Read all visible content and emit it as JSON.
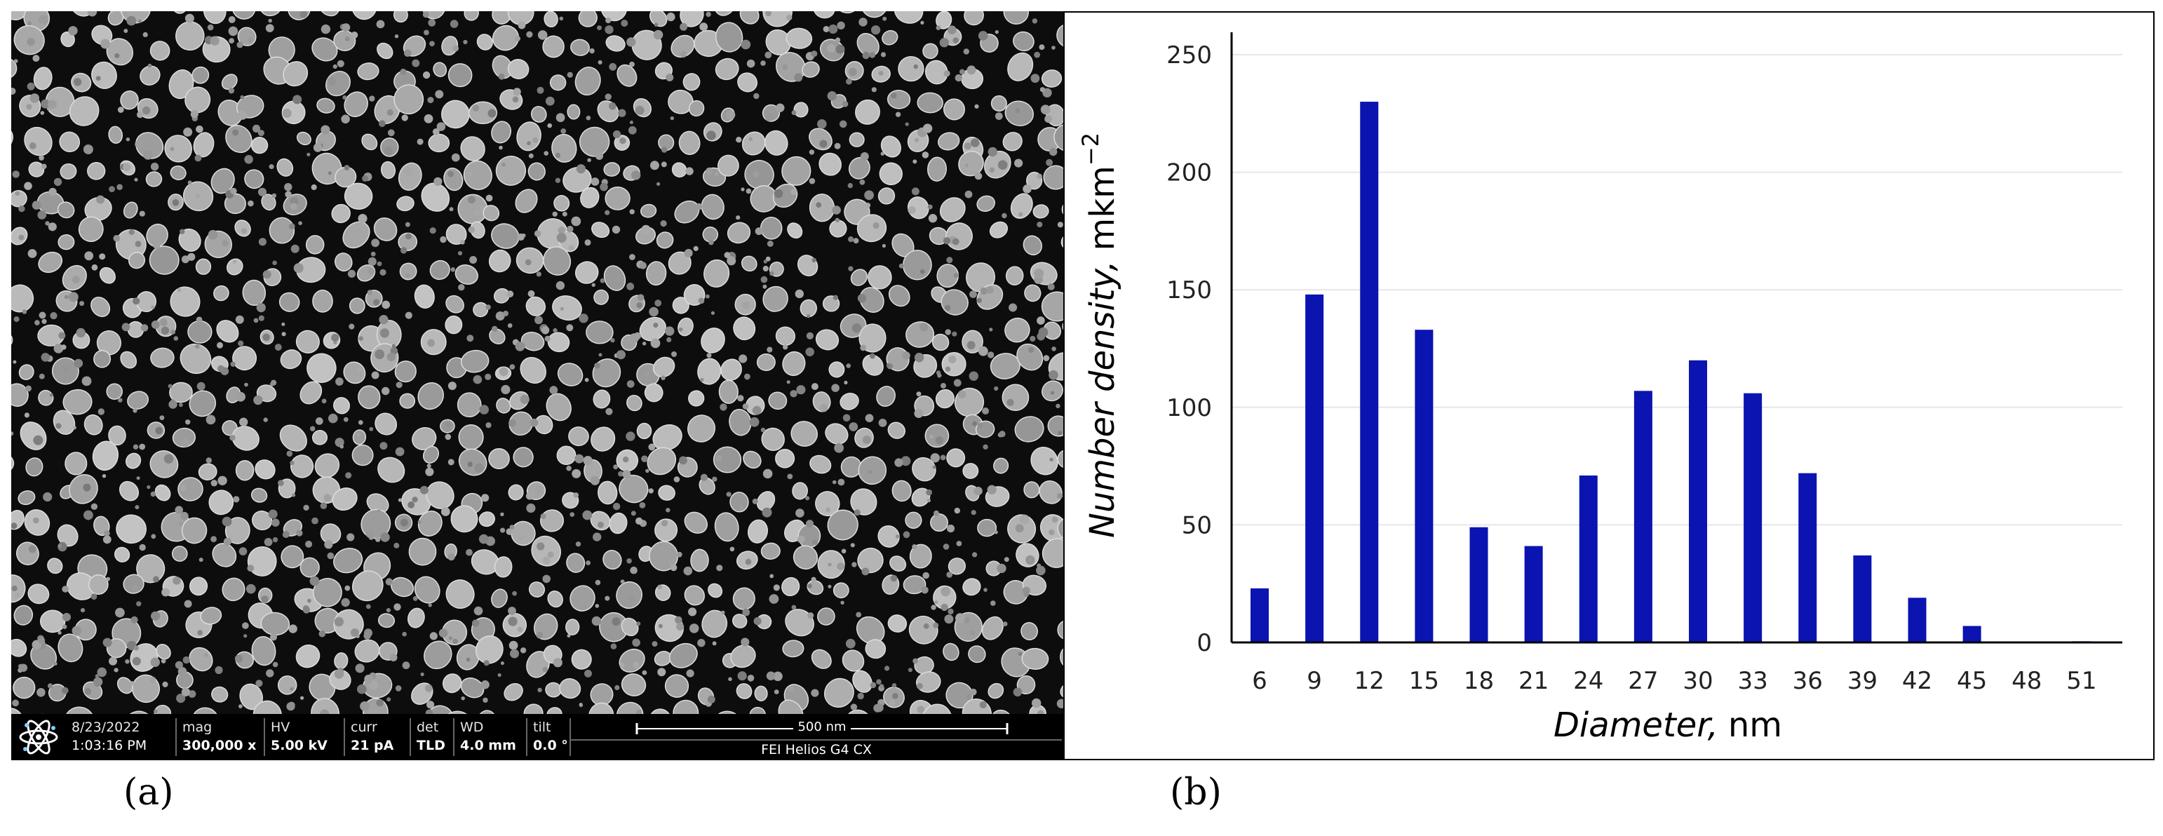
{
  "panel_labels": {
    "a": "(a)",
    "b": "(b)"
  },
  "sem_info": {
    "date": "8/23/2022",
    "time": "1:03:16 PM",
    "mag_label": "mag",
    "mag_value": "300,000 x",
    "hv_label": "HV",
    "hv_value": "5.00 kV",
    "curr_label": "curr",
    "curr_value": "21 pA",
    "det_label": "det",
    "det_value": "TLD",
    "wd_label": "WD",
    "wd_value": "4.0 mm",
    "tilt_label": "tilt",
    "tilt_value": "0.0 °",
    "scale_bar_label": "500 nm",
    "instrument": "FEI Helios G4 CX",
    "logo_icon": "atom-icon"
  },
  "chart_data": {
    "type": "bar",
    "title": "",
    "xlabel_italic": "Diameter,",
    "xlabel_unit": "nm",
    "ylabel_italic": "Number density,",
    "ylabel_unit": "mkm",
    "ylabel_exp": "−2",
    "categories": [
      "6",
      "9",
      "12",
      "15",
      "18",
      "21",
      "24",
      "27",
      "30",
      "33",
      "36",
      "39",
      "42",
      "45",
      "48",
      "51"
    ],
    "values": [
      23,
      148,
      230,
      133,
      49,
      41,
      71,
      107,
      120,
      106,
      72,
      37,
      19,
      7,
      0,
      0.5
    ],
    "ylim": [
      0,
      250
    ],
    "yticks": [
      0,
      50,
      100,
      150,
      200,
      250
    ],
    "bar_color": "#0b14b0",
    "grid": true,
    "legend": "none"
  }
}
